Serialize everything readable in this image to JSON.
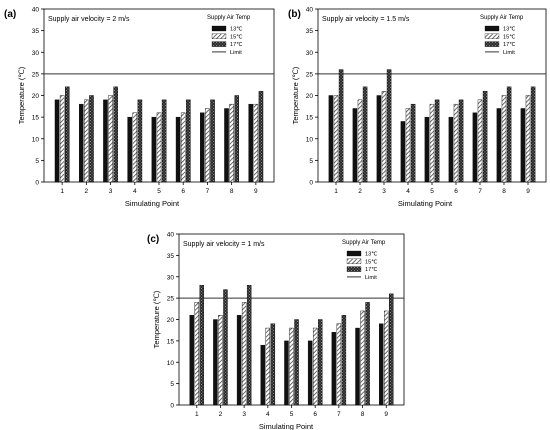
{
  "figure": {
    "legend_title": "Supply Air Temp",
    "legend_items": [
      "13℃",
      "15℃",
      "17℃",
      "Limit"
    ],
    "ylabel": "Temperature (℃)",
    "xlabel": "Simulating Point",
    "limit_value": 25,
    "colors": {
      "bar13": "#111111",
      "bar15": "#b8b8b8",
      "bar17": "#3a3a3a",
      "limit": "#333333"
    }
  },
  "chart_data": [
    {
      "type": "bar",
      "panel_label": "(a)",
      "annotation": "Supply air velocity = 2 m/s",
      "categories": [
        "1",
        "2",
        "3",
        "4",
        "5",
        "6",
        "7",
        "8",
        "9"
      ],
      "series": [
        {
          "name": "13℃",
          "values": [
            19,
            18,
            19,
            15,
            15,
            15,
            16,
            17,
            18
          ]
        },
        {
          "name": "15℃",
          "values": [
            20,
            19,
            20,
            16,
            16,
            16,
            17,
            18,
            18
          ]
        },
        {
          "name": "17℃",
          "values": [
            22,
            20,
            22,
            19,
            19,
            19,
            19,
            20,
            21
          ]
        }
      ],
      "limit": 25,
      "xlabel": "Simulating Point",
      "ylabel": "Temperature (℃)",
      "ylim": [
        0,
        40
      ],
      "yticks": [
        0,
        5,
        10,
        15,
        20,
        25,
        30,
        35,
        40
      ],
      "legend_position": "top-right"
    },
    {
      "type": "bar",
      "panel_label": "(b)",
      "annotation": "Supply air velocity = 1.5 m/s",
      "categories": [
        "1",
        "2",
        "3",
        "4",
        "5",
        "6",
        "7",
        "8",
        "9"
      ],
      "series": [
        {
          "name": "13℃",
          "values": [
            20,
            17,
            20,
            14,
            15,
            15,
            16,
            17,
            17
          ]
        },
        {
          "name": "15℃",
          "values": [
            20,
            19,
            21,
            17,
            18,
            18,
            19,
            20,
            20
          ]
        },
        {
          "name": "17℃",
          "values": [
            26,
            22,
            26,
            18,
            19,
            19,
            21,
            22,
            22
          ]
        }
      ],
      "limit": 25,
      "xlabel": "Simulating Point",
      "ylabel": "Temperature (℃)",
      "ylim": [
        0,
        40
      ],
      "yticks": [
        0,
        5,
        10,
        15,
        20,
        25,
        30,
        35,
        40
      ],
      "legend_position": "top-right"
    },
    {
      "type": "bar",
      "panel_label": "(c)",
      "annotation": "Supply air velocity = 1 m/s",
      "categories": [
        "1",
        "2",
        "3",
        "4",
        "5",
        "6",
        "7",
        "8",
        "9"
      ],
      "series": [
        {
          "name": "13℃",
          "values": [
            21,
            20,
            21,
            14,
            15,
            15,
            17,
            18,
            19
          ]
        },
        {
          "name": "15℃",
          "values": [
            24,
            21,
            24,
            18,
            18,
            18,
            19,
            22,
            22
          ]
        },
        {
          "name": "17℃",
          "values": [
            28,
            27,
            28,
            19,
            20,
            20,
            21,
            24,
            26
          ]
        }
      ],
      "limit": 25,
      "xlabel": "Simulating Point",
      "ylabel": "Temperature (℃)",
      "ylim": [
        0,
        40
      ],
      "yticks": [
        0,
        5,
        10,
        15,
        20,
        25,
        30,
        35,
        40
      ],
      "legend_position": "top-right"
    }
  ]
}
